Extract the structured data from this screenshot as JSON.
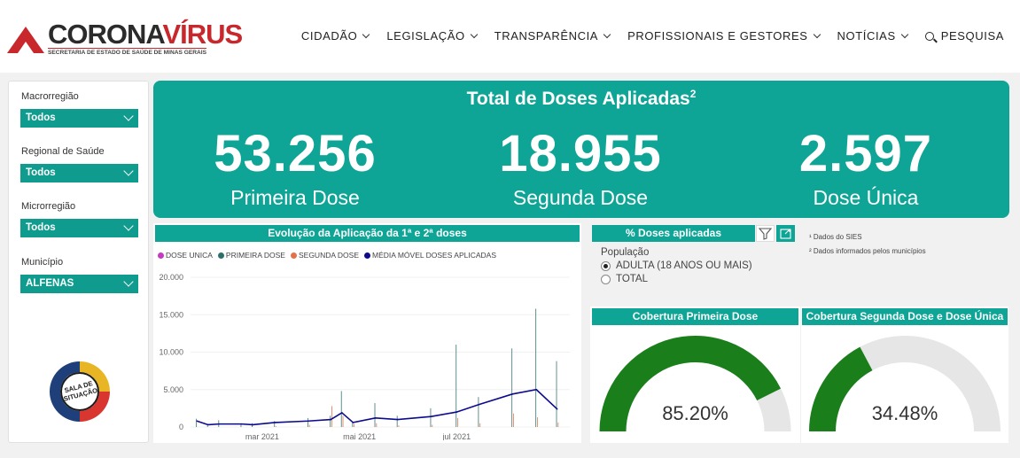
{
  "brand": {
    "word_a": "CORONA",
    "word_b": "VÍRUS",
    "subtitle": "SECRETARIA DE ESTADO DE SAÚDE DE MINAS GERAIS"
  },
  "nav": {
    "items": [
      "CIDADÃO",
      "LEGISLAÇÃO",
      "TRANSPARÊNCIA",
      "PROFISSIONAIS E GESTORES",
      "NOTÍCIAS"
    ],
    "search": "PESQUISA"
  },
  "filters": [
    {
      "label": "Macrorregião",
      "value": "Todos"
    },
    {
      "label": "Regional de Saúde",
      "value": "Todos"
    },
    {
      "label": "Microrregião",
      "value": "Todos"
    },
    {
      "label": "Município",
      "value": "ALFENAS"
    }
  ],
  "badge_text": {
    "line1": "SALA DE",
    "line2": "SITUAÇÃO"
  },
  "kpi": {
    "title": "Total de Doses Aplicadas",
    "title_sup": "2",
    "items": [
      {
        "value": "53.256",
        "label": "Primeira Dose"
      },
      {
        "value": "18.955",
        "label": "Segunda Dose"
      },
      {
        "value": "2.597",
        "label": "Dose Única"
      }
    ]
  },
  "evolution": {
    "title": "Evolução da Aplicação da 1ª e 2ª doses",
    "legend": [
      "DOSE UNICA",
      "PRIMEIRA DOSE",
      "SEGUNDA DOSE",
      "MÉDIA MÓVEL DOSES APLICADAS"
    ]
  },
  "doses_panel": {
    "title": "% Doses aplicadas",
    "population_label": "População",
    "options": [
      "ADULTA (18 ANOS OU MAIS)",
      "TOTAL"
    ],
    "selected": 0
  },
  "notes": [
    "¹ Dados do SIES",
    "² Dados informados pelos municípios"
  ],
  "gauges": [
    {
      "title": "Cobertura Primeira Dose",
      "value_text": "85.20%",
      "value": 85.2
    },
    {
      "title": "Cobertura Segunda Dose e Dose Única",
      "value_text": "34.48%",
      "value": 34.48
    }
  ],
  "colors": {
    "teal": "#0fa596",
    "gauge_fill": "#1a7f1a",
    "gauge_bg": "#e6e6e6",
    "dose_unica": "#c23cc2",
    "primeira": "#2f6f6a",
    "segunda": "#e0734a",
    "media": "#0b0b8c"
  },
  "chart_data": {
    "type": "line",
    "ylim": [
      0,
      20000
    ],
    "yticks": [
      0,
      5000,
      10000,
      15000,
      20000
    ],
    "ytick_labels": [
      "0",
      "5.000",
      "10.000",
      "15.000",
      "20.000"
    ],
    "xtick_labels": [
      "mar 2021",
      "mai 2021",
      "jul 2021"
    ],
    "x": [
      "2021-01-19",
      "2021-01-26",
      "2021-02-02",
      "2021-02-16",
      "2021-02-23",
      "2021-03-09",
      "2021-03-30",
      "2021-04-13",
      "2021-04-20",
      "2021-04-27",
      "2021-05-11",
      "2021-05-25",
      "2021-06-15",
      "2021-07-01",
      "2021-07-15",
      "2021-08-05",
      "2021-08-20",
      "2021-09-02"
    ],
    "series": [
      {
        "name": "PRIMEIRA DOSE",
        "values": [
          1100,
          200,
          900,
          300,
          500,
          800,
          1200,
          1500,
          4800,
          600,
          3200,
          1500,
          2500,
          11000,
          4000,
          10500,
          15800,
          8800
        ]
      },
      {
        "name": "SEGUNDA DOSE",
        "values": [
          0,
          0,
          0,
          0,
          0,
          100,
          300,
          2800,
          1500,
          400,
          500,
          200,
          300,
          1200,
          500,
          1800,
          1300,
          600
        ]
      },
      {
        "name": "MÉDIA MÓVEL DOSES APLICADAS",
        "values": [
          800,
          300,
          400,
          400,
          300,
          600,
          800,
          1000,
          1900,
          600,
          1200,
          1000,
          1400,
          2000,
          3000,
          4400,
          5000,
          2400
        ]
      }
    ]
  }
}
